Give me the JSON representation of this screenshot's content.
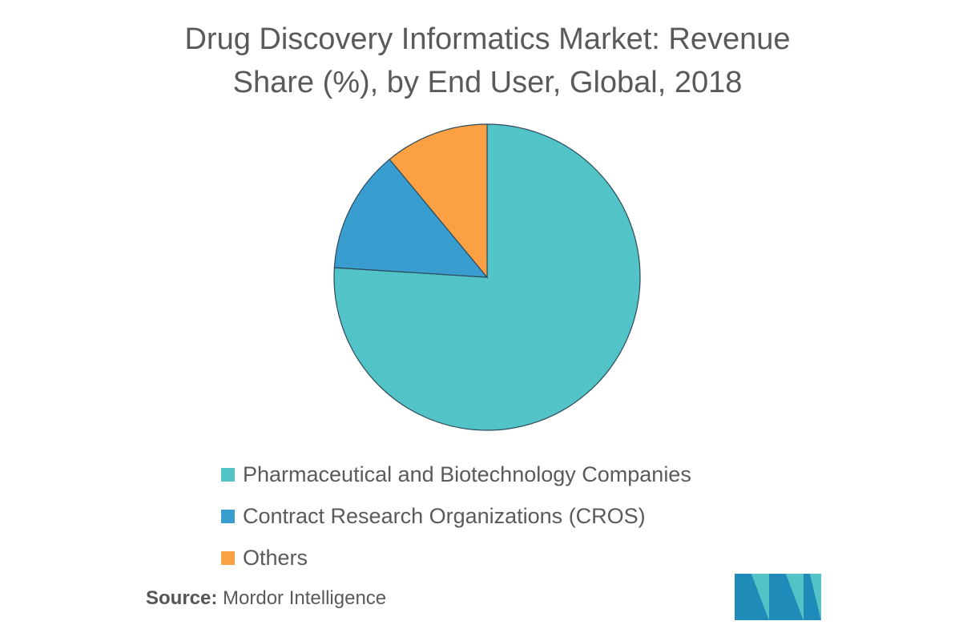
{
  "chart_data": {
    "type": "pie",
    "title_lines": [
      "Drug Discovery Informatics Market: Revenue",
      "Share (%), by End User, Global, 2018"
    ],
    "start_angle_deg": 0,
    "direction": "clockwise",
    "slices": [
      {
        "name": "Pharmaceutical and Biotechnology Companies",
        "value": 76,
        "color": "#52C3C6"
      },
      {
        "name": "Contract Research Organizations (CROS)",
        "value": 13,
        "color": "#3A9DD0"
      },
      {
        "name": "Others",
        "value": 11,
        "color": "#FBA043"
      }
    ],
    "legend_position": "bottom-left"
  },
  "source": {
    "label": "Source:",
    "text": "Mordor Intelligence"
  },
  "logo": {
    "icon": "mordor-intelligence-logo-icon",
    "colors": [
      "#1F8BB8",
      "#52C3C6"
    ]
  }
}
